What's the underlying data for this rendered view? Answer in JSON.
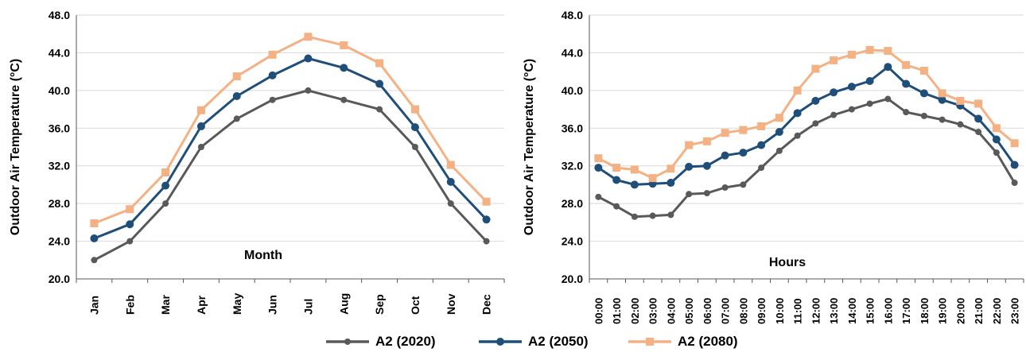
{
  "chart_data": [
    {
      "type": "line",
      "xlabel": "Month",
      "ylabel": "Outdoor  Air  Temperature  (°C)",
      "ylim": [
        20,
        48
      ],
      "yticks": [
        "20.0",
        "24.0",
        "28.0",
        "32.0",
        "36.0",
        "40.0",
        "44.0",
        "48.0"
      ],
      "grid": true,
      "categories": [
        "Jan",
        "Feb",
        "Mar",
        "Apr",
        "May",
        "Jun",
        "Jul",
        "Aug",
        "Sep",
        "Oct",
        "Nov",
        "Dec"
      ],
      "series": [
        {
          "name": "A2 (2020)",
          "color": "#595959",
          "marker": "circle",
          "values": [
            22.0,
            24.0,
            28.0,
            34.0,
            37.0,
            39.0,
            40.0,
            39.0,
            38.0,
            34.0,
            28.0,
            24.0
          ]
        },
        {
          "name": "A2 (2050)",
          "color": "#1F4E79",
          "marker": "circle",
          "values": [
            24.3,
            25.8,
            29.9,
            36.2,
            39.4,
            41.6,
            43.4,
            42.4,
            40.7,
            36.1,
            30.3,
            26.3
          ]
        },
        {
          "name": "A2 (2080)",
          "color": "#F4B183",
          "marker": "square",
          "values": [
            25.9,
            27.4,
            31.3,
            37.9,
            41.5,
            43.8,
            45.7,
            44.8,
            42.9,
            38.0,
            32.1,
            28.2
          ]
        }
      ]
    },
    {
      "type": "line",
      "xlabel": "Hours",
      "ylabel": "Outdoor  Air  Temperature  (°C)",
      "ylim": [
        20,
        48
      ],
      "yticks": [
        "20.0",
        "24.0",
        "28.0",
        "32.0",
        "36.0",
        "40.0",
        "44.0",
        "48.0"
      ],
      "grid": true,
      "categories": [
        "00:00",
        "01:00",
        "02:00",
        "03:00",
        "04:00",
        "05:00",
        "06:00",
        "07:00",
        "08:00",
        "09:00",
        "10:00",
        "11:00",
        "12:00",
        "13:00",
        "14:00",
        "15:00",
        "16:00",
        "17:00",
        "18:00",
        "19:00",
        "20:00",
        "21:00",
        "22:00",
        "23:00"
      ],
      "series": [
        {
          "name": "A2 (2020)",
          "color": "#595959",
          "marker": "circle",
          "values": [
            28.7,
            27.7,
            26.6,
            26.7,
            26.8,
            29.0,
            29.1,
            29.7,
            30.0,
            31.8,
            33.6,
            35.2,
            36.5,
            37.4,
            38.0,
            38.6,
            39.1,
            37.7,
            37.3,
            36.9,
            36.4,
            35.6,
            33.4,
            30.2
          ]
        },
        {
          "name": "A2 (2050)",
          "color": "#1F4E79",
          "marker": "circle",
          "values": [
            31.8,
            30.5,
            30.0,
            30.1,
            30.2,
            31.9,
            32.0,
            33.1,
            33.4,
            34.2,
            35.6,
            37.6,
            38.9,
            39.8,
            40.4,
            41.0,
            42.5,
            40.7,
            39.7,
            39.0,
            38.4,
            37.0,
            34.8,
            32.1
          ]
        },
        {
          "name": "A2 (2080)",
          "color": "#F4B183",
          "marker": "square",
          "values": [
            32.8,
            31.8,
            31.6,
            30.7,
            31.7,
            34.2,
            34.6,
            35.5,
            35.8,
            36.2,
            37.1,
            40.0,
            42.3,
            43.2,
            43.8,
            44.3,
            44.2,
            42.7,
            42.1,
            39.7,
            38.9,
            38.6,
            36.0,
            34.4
          ]
        }
      ]
    }
  ],
  "legend": {
    "placement": "bottom",
    "items": [
      {
        "label": "A2 (2020)",
        "color": "#595959",
        "marker": "circle"
      },
      {
        "label": "A2 (2050)",
        "color": "#1F4E79",
        "marker": "circle"
      },
      {
        "label": "A2 (2080)",
        "color": "#F4B183",
        "marker": "square"
      }
    ]
  }
}
